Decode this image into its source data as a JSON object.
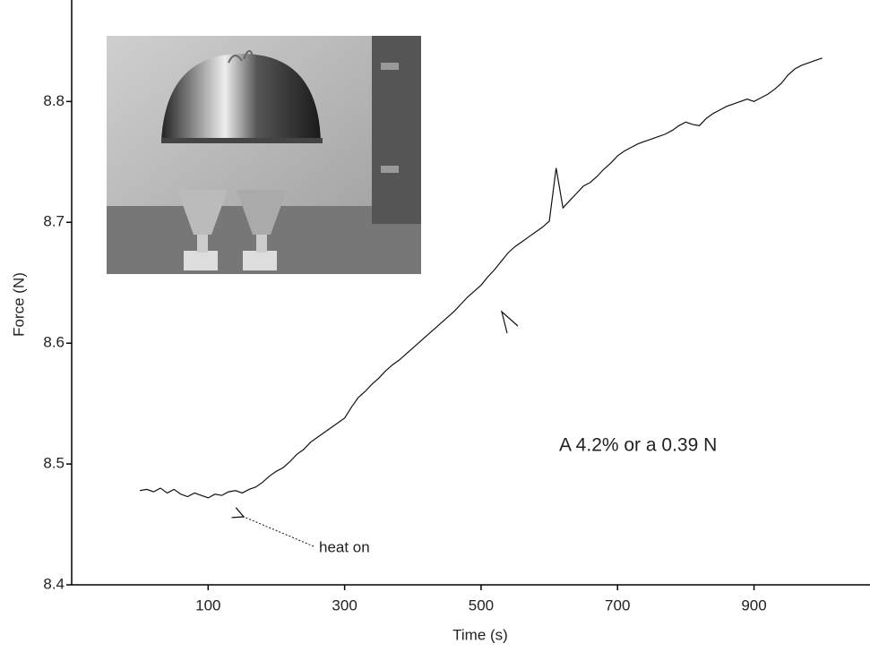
{
  "chart_data": {
    "type": "line",
    "x_label": "Time (s)",
    "y_label": "Force (N)",
    "annotations": [
      "heat on",
      "A 4.2% or a 0.39 N"
    ],
    "xlim": [
      -100,
      1070
    ],
    "ylim": [
      8.4,
      8.884
    ],
    "xticks": [
      100,
      300,
      500,
      700,
      900
    ],
    "yticks": [
      8.4,
      8.5,
      8.6,
      8.7,
      8.8
    ],
    "color": "#111111",
    "x": [
      0,
      10,
      20,
      30,
      40,
      50,
      60,
      70,
      80,
      90,
      100,
      110,
      120,
      130,
      140,
      150,
      160,
      170,
      180,
      190,
      200,
      210,
      220,
      230,
      240,
      250,
      260,
      270,
      280,
      290,
      300,
      310,
      320,
      330,
      340,
      350,
      360,
      370,
      380,
      390,
      400,
      410,
      420,
      430,
      440,
      450,
      460,
      470,
      480,
      490,
      500,
      510,
      520,
      530,
      540,
      550,
      560,
      570,
      580,
      590,
      600,
      610,
      620,
      630,
      640,
      650,
      660,
      670,
      680,
      690,
      700,
      710,
      720,
      730,
      740,
      750,
      760,
      770,
      780,
      790,
      800,
      810,
      820,
      830,
      840,
      850,
      860,
      870,
      880,
      890,
      900,
      910,
      920,
      930,
      940,
      950,
      960,
      970,
      980,
      990,
      1000
    ],
    "values": [
      8.478,
      8.479,
      8.477,
      8.48,
      8.476,
      8.479,
      8.475,
      8.473,
      8.476,
      8.474,
      8.472,
      8.475,
      8.474,
      8.477,
      8.478,
      8.476,
      8.479,
      8.481,
      8.485,
      8.49,
      8.494,
      8.497,
      8.502,
      8.508,
      8.512,
      8.518,
      8.522,
      8.526,
      8.53,
      8.534,
      8.538,
      8.547,
      8.555,
      8.56,
      8.566,
      8.571,
      8.577,
      8.582,
      8.586,
      8.591,
      8.596,
      8.601,
      8.606,
      8.611,
      8.616,
      8.621,
      8.626,
      8.632,
      8.638,
      8.643,
      8.648,
      8.655,
      8.661,
      8.668,
      8.675,
      8.68,
      8.684,
      8.688,
      8.692,
      8.696,
      8.701,
      8.745,
      8.712,
      8.718,
      8.724,
      8.73,
      8.733,
      8.738,
      8.744,
      8.749,
      8.755,
      8.759,
      8.762,
      8.765,
      8.767,
      8.769,
      8.771,
      8.773,
      8.776,
      8.78,
      8.783,
      8.781,
      8.78,
      8.786,
      8.79,
      8.793,
      8.796,
      8.798,
      8.8,
      8.802,
      8.8,
      8.803,
      8.806,
      8.81,
      8.815,
      8.822,
      8.827,
      8.83,
      8.832,
      8.834,
      8.836
    ]
  }
}
